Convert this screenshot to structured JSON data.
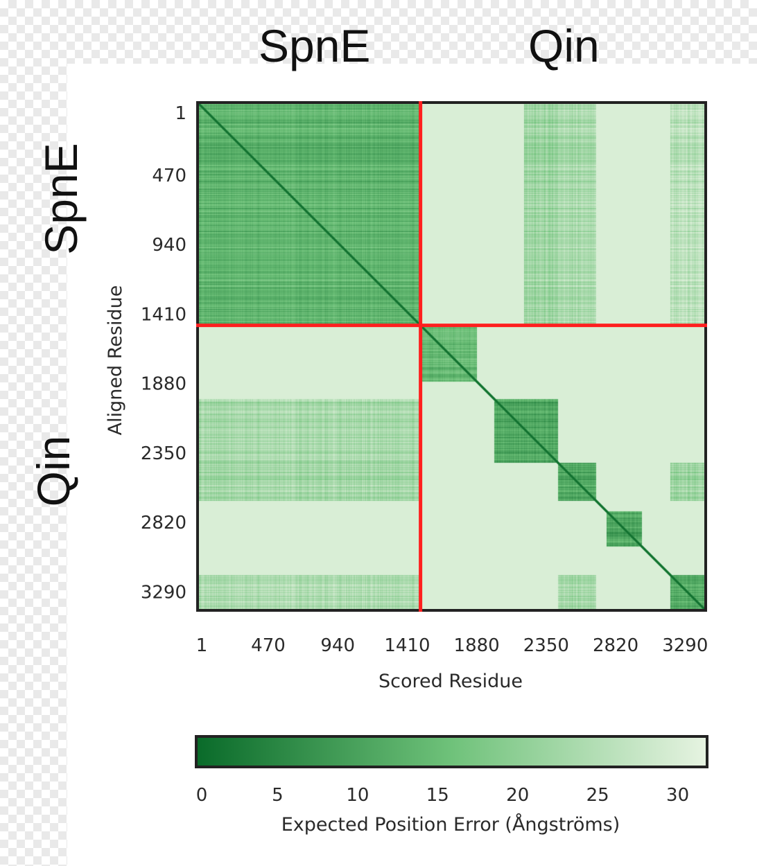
{
  "chart_data": {
    "type": "heatmap",
    "title": "",
    "top_labels": [
      "SpnE",
      "Qin"
    ],
    "left_labels": [
      "SpnE",
      "Qin"
    ],
    "xlabel": "Scored Residue",
    "ylabel": "Aligned Residue",
    "x_ticks": [
      1,
      470,
      940,
      1410,
      1880,
      2350,
      2820,
      3290
    ],
    "y_ticks": [
      1,
      470,
      940,
      1410,
      1880,
      2350,
      2820,
      3290
    ],
    "x_tick_labels": [
      "1",
      "470",
      "940",
      "1410",
      "1880",
      "2350",
      "2820",
      "3290"
    ],
    "y_tick_labels": [
      "1",
      "470",
      "940",
      "1410",
      "1880",
      "2350",
      "2820",
      "3290"
    ],
    "range": [
      1,
      3420
    ],
    "chain_boundary": 1500,
    "chains": [
      {
        "name": "SpnE",
        "start": 1,
        "end": 1500
      },
      {
        "name": "Qin",
        "start": 1501,
        "end": 3420
      }
    ],
    "confident_blocks": [
      {
        "rows": [
          1,
          1500
        ],
        "cols": [
          1,
          1500
        ],
        "pae": 8
      },
      {
        "rows": [
          1501,
          1880
        ],
        "cols": [
          1501,
          1880
        ],
        "pae": 9
      },
      {
        "rows": [
          2000,
          2430
        ],
        "cols": [
          2000,
          2430
        ],
        "pae": 5
      },
      {
        "rows": [
          2430,
          2690
        ],
        "cols": [
          2430,
          2690
        ],
        "pae": 6
      },
      {
        "rows": [
          2760,
          3000
        ],
        "cols": [
          2760,
          3000
        ],
        "pae": 5
      },
      {
        "rows": [
          3190,
          3420
        ],
        "cols": [
          3190,
          3420
        ],
        "pae": 6
      }
    ],
    "interchain_bands": [
      {
        "rows": [
          1,
          1500
        ],
        "cols": [
          2200,
          2430
        ],
        "pae": 16
      },
      {
        "rows": [
          1,
          1500
        ],
        "cols": [
          2430,
          2690
        ],
        "pae": 18
      },
      {
        "rows": [
          1,
          1500
        ],
        "cols": [
          3190,
          3420
        ],
        "pae": 20
      },
      {
        "rows": [
          2000,
          2430
        ],
        "cols": [
          1,
          1500
        ],
        "pae": 17
      },
      {
        "rows": [
          2430,
          2690
        ],
        "cols": [
          1,
          1500
        ],
        "pae": 17
      },
      {
        "rows": [
          3190,
          3420
        ],
        "cols": [
          1,
          1500
        ],
        "pae": 18
      },
      {
        "rows": [
          2430,
          2690
        ],
        "cols": [
          3190,
          3420
        ],
        "pae": 16
      },
      {
        "rows": [
          3190,
          3420
        ],
        "cols": [
          2430,
          2690
        ],
        "pae": 17
      }
    ],
    "background_pae": 30,
    "colorbar": {
      "label": "Expected Position Error (Ångströms)",
      "min": 0,
      "max": 31.75,
      "ticks": [
        0,
        5,
        10,
        15,
        20,
        25,
        30
      ],
      "tick_labels": [
        "0",
        "5",
        "10",
        "15",
        "20",
        "25",
        "30"
      ],
      "color_low": "#0a6b2a",
      "color_mid": "#6fc27a",
      "color_high": "#e6f3e1"
    },
    "colors": {
      "divider": "#ff1f1f",
      "frame": "#222222",
      "diagonal": "#0b5d24"
    }
  }
}
